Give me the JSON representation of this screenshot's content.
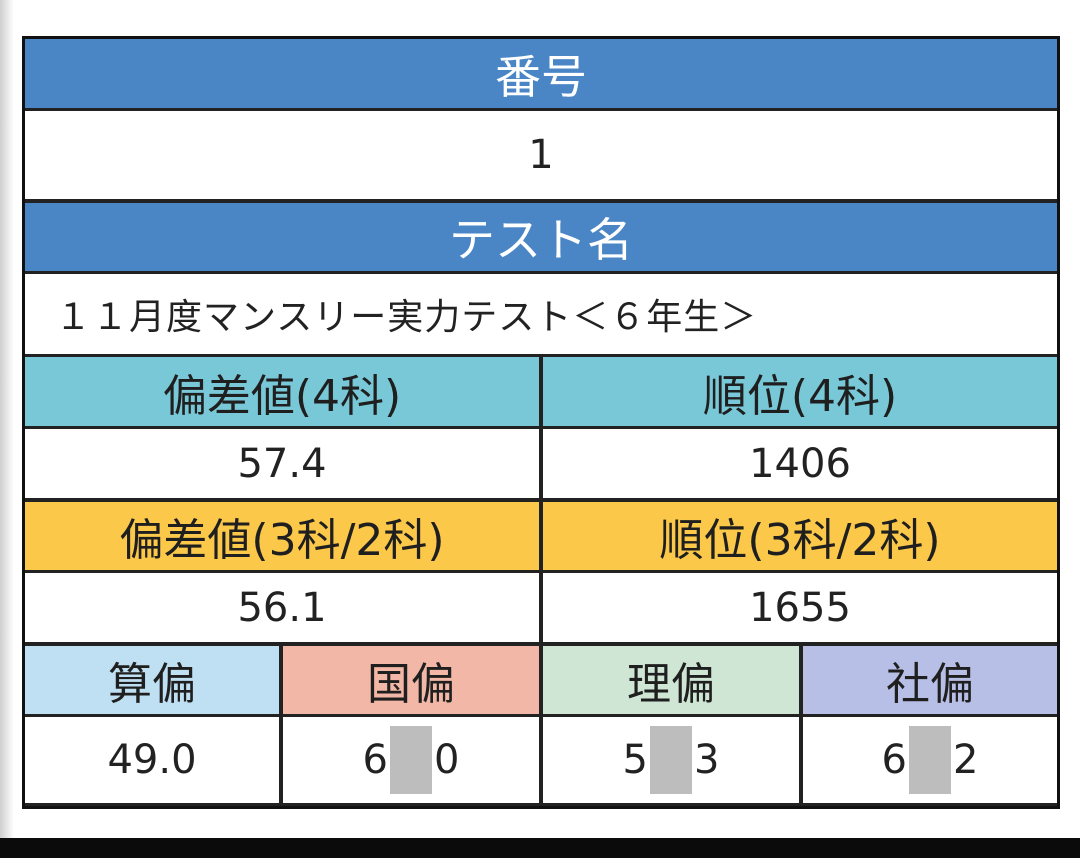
{
  "number": {
    "label": "番号",
    "value": "1"
  },
  "test": {
    "label": "テスト名",
    "value": "１１月度マンスリー実力テスト＜６年生＞"
  },
  "row4": {
    "deviation_label": "偏差値(4科)",
    "deviation_value": "57.4",
    "rank_label": "順位(4科)",
    "rank_value": "1406"
  },
  "row3": {
    "deviation_label": "偏差値(3科/2科)",
    "deviation_value": "56.1",
    "rank_label": "順位(3科/2科)",
    "rank_value": "1655"
  },
  "subjects": {
    "math": {
      "label": "算偏",
      "value": "49.0"
    },
    "japanese": {
      "label": "国偏",
      "value_pre": "6",
      "value_post": "0"
    },
    "science": {
      "label": "理偏",
      "value_pre": "5",
      "value_post": "3"
    },
    "social": {
      "label": "社偏",
      "value_pre": "6",
      "value_post": "2"
    }
  },
  "colors": {
    "header_blue": "#4a86c6",
    "header_teal": "#78c8d8",
    "header_yellow": "#fbc84a",
    "math": "#bfe0f2",
    "japanese": "#f2b7a6",
    "science": "#cfe6d4",
    "social": "#b7bfe6",
    "redaction": "#bdbdbd"
  }
}
